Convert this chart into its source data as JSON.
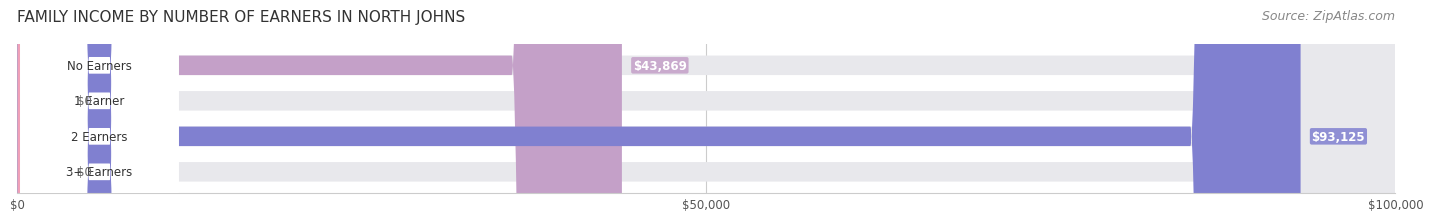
{
  "title": "FAMILY INCOME BY NUMBER OF EARNERS IN NORTH JOHNS",
  "source": "Source: ZipAtlas.com",
  "categories": [
    "No Earners",
    "1 Earner",
    "2 Earners",
    "3+ Earners"
  ],
  "values": [
    43869,
    0,
    93125,
    0
  ],
  "bar_colors": [
    "#c4a0c8",
    "#6dcbcc",
    "#8080d0",
    "#f0a0b8"
  ],
  "bar_bg_color": "#eeeeee",
  "label_bg_color": "#ffffff",
  "xlim": [
    0,
    100000
  ],
  "xticks": [
    0,
    50000,
    100000
  ],
  "xtick_labels": [
    "$0",
    "$50,000",
    "$100,000"
  ],
  "value_labels": [
    "$43,869",
    "$0",
    "$93,125",
    "$0"
  ],
  "title_fontsize": 11,
  "source_fontsize": 9,
  "bar_height": 0.55,
  "fig_bg_color": "#ffffff"
}
